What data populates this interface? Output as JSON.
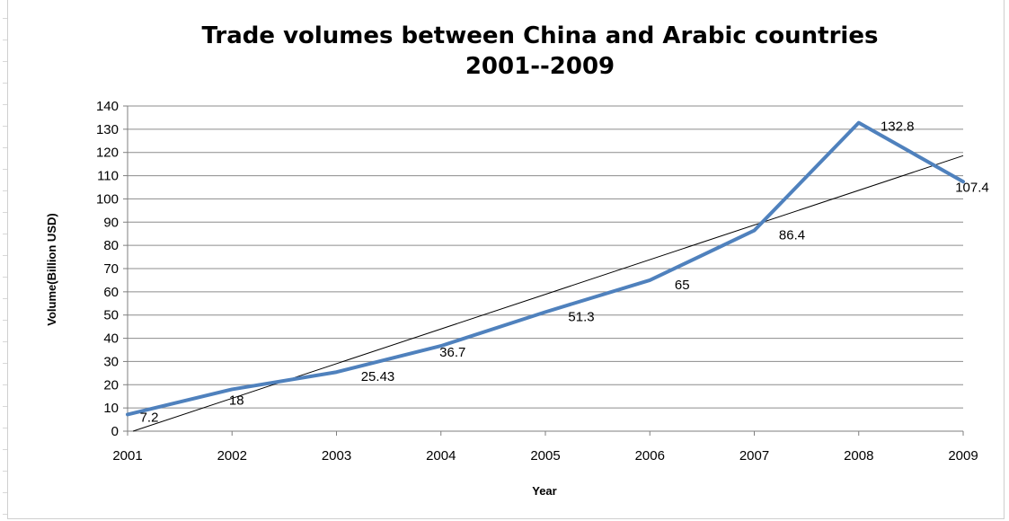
{
  "chart_data": {
    "type": "line",
    "title_line1": "Trade volumes between China and Arabic countries",
    "title_line2": "2001--2009",
    "xlabel": "Year",
    "ylabel": "Volume(Billion USD)",
    "categories": [
      "2001",
      "2002",
      "2003",
      "2004",
      "2005",
      "2006",
      "2007",
      "2008",
      "2009"
    ],
    "series": [
      {
        "values": [
          7.2,
          18,
          25.43,
          36.7,
          51.3,
          65,
          86.4,
          132.8,
          107.4
        ],
        "labels": [
          "7.2",
          "18",
          "25.43",
          "36.7",
          "51.3",
          "65",
          "86.4",
          "132.8",
          "107.4"
        ],
        "color": "#4f81bd"
      }
    ],
    "trendline": {
      "type": "linear",
      "color": "#000000"
    },
    "ylim": [
      0,
      140
    ],
    "ytick_step": 10,
    "yticks": [
      "0",
      "10",
      "20",
      "30",
      "40",
      "50",
      "60",
      "70",
      "80",
      "90",
      "100",
      "110",
      "120",
      "130",
      "140"
    ],
    "grid": true,
    "legend": "none"
  }
}
